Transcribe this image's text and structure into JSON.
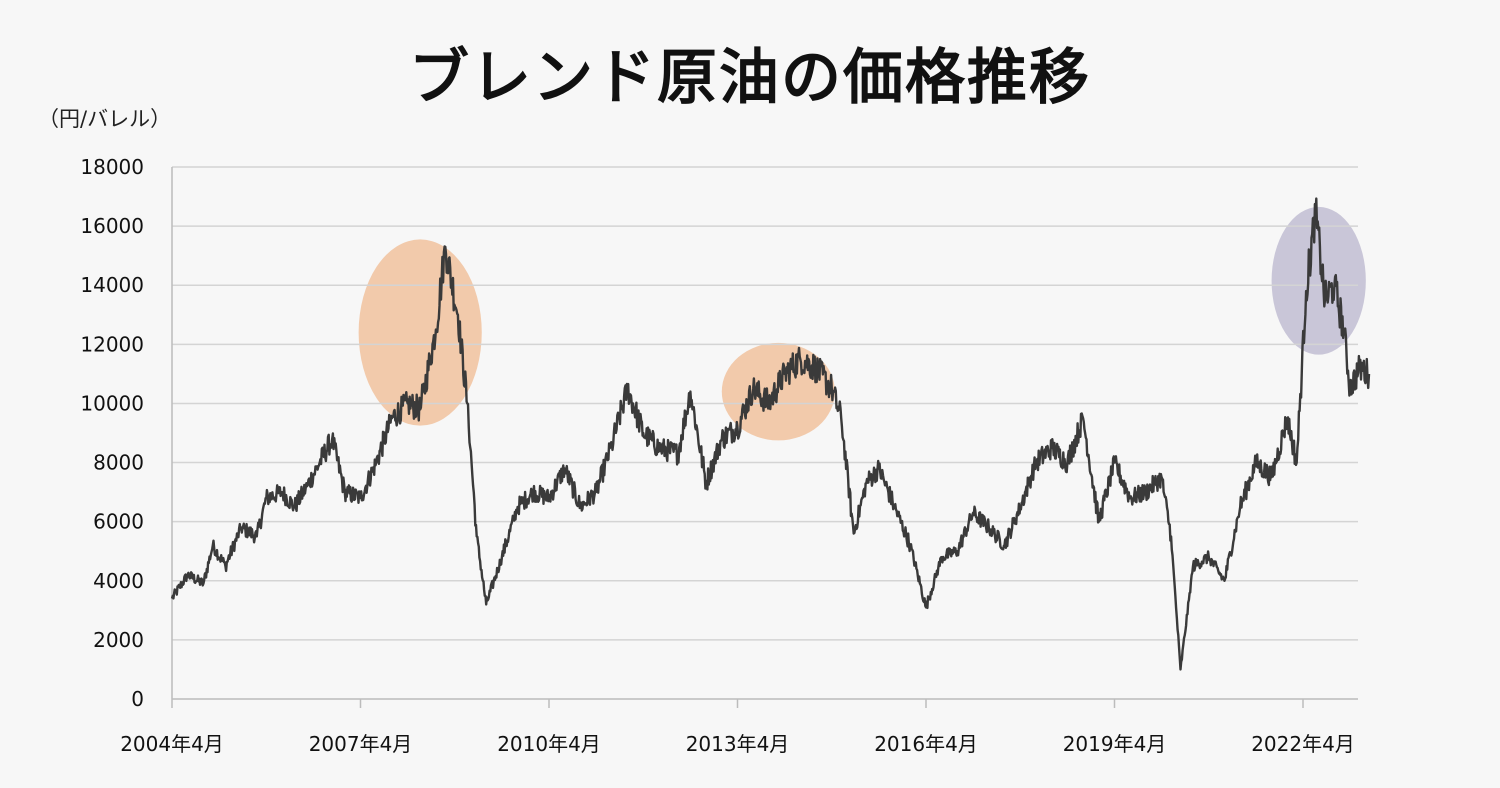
{
  "chart_data": {
    "type": "line",
    "title": "ブレンド原油の価格推移",
    "ylabel": "（円/バレル）",
    "xlabel": "",
    "ylim": [
      0,
      18000
    ],
    "yticks": [
      "0",
      "2000",
      "4000",
      "6000",
      "8000",
      "10000",
      "12000",
      "14000",
      "16000",
      "18000"
    ],
    "xticks": [
      "2004年4月",
      "2007年4月",
      "2010年4月",
      "2013年4月",
      "2016年4月",
      "2019年4月",
      "2022年4月"
    ],
    "x_range_years": [
      2004.25,
      2023.3
    ],
    "grid": "horizontal",
    "legend": "none",
    "line_color": "#3a3a3a",
    "series": [
      {
        "x": [
          2004.25,
          2004.5,
          2004.75,
          2004.9,
          2005.1,
          2005.35,
          2005.6,
          2005.75,
          2006.0,
          2006.2,
          2006.4,
          2006.6,
          2006.8,
          2007.0,
          2007.25,
          2007.5,
          2007.75,
          2008.0,
          2008.2,
          2008.45,
          2008.6,
          2008.8,
          2008.95,
          2009.1,
          2009.25,
          2009.5,
          2009.75,
          2010.0,
          2010.25,
          2010.5,
          2010.75,
          2011.0,
          2011.25,
          2011.5,
          2011.75,
          2012.0,
          2012.3,
          2012.5,
          2012.75,
          2013.0,
          2013.25,
          2013.5,
          2013.75,
          2014.0,
          2014.25,
          2014.5,
          2014.75,
          2014.9,
          2015.1,
          2015.3,
          2015.5,
          2015.75,
          2016.0,
          2016.25,
          2016.5,
          2016.75,
          2017.0,
          2017.25,
          2017.5,
          2017.75,
          2018.0,
          2018.25,
          2018.5,
          2018.75,
          2019.0,
          2019.25,
          2019.5,
          2019.75,
          2020.0,
          2020.15,
          2020.3,
          2020.5,
          2020.75,
          2021.0,
          2021.25,
          2021.5,
          2021.75,
          2022.0,
          2022.15,
          2022.3,
          2022.45,
          2022.6,
          2022.75,
          2022.9,
          2023.0,
          2023.15,
          2023.3
        ],
        "values": [
          3400,
          4200,
          3900,
          5200,
          4500,
          5800,
          5500,
          6800,
          7000,
          6500,
          7200,
          8000,
          8800,
          7000,
          6800,
          8000,
          9500,
          10000,
          9800,
          12500,
          15300,
          13000,
          10000,
          5500,
          3200,
          4800,
          6500,
          7000,
          6800,
          7800,
          6500,
          7000,
          8600,
          10500,
          9000,
          8500,
          8300,
          10400,
          7300,
          8800,
          9200,
          10500,
          10000,
          11000,
          11500,
          11200,
          10500,
          9500,
          5600,
          7300,
          7800,
          6500,
          5200,
          3100,
          4800,
          5000,
          6300,
          5800,
          5200,
          6500,
          8000,
          8500,
          8000,
          9500,
          6000,
          8000,
          6800,
          7000,
          7500,
          5500,
          1000,
          4500,
          4800,
          4000,
          6500,
          8000,
          7500,
          9500,
          8000,
          13800,
          16500,
          13500,
          14000,
          12500,
          10500,
          11200,
          11000
        ]
      }
    ],
    "highlights": [
      {
        "color": "#f0b88e",
        "cx_year": 2008.2,
        "cy_value": 12400,
        "rx_years": 0.98,
        "ry_value": 3150
      },
      {
        "color": "#f0b88e",
        "cx_year": 2013.9,
        "cy_value": 10400,
        "rx_years": 0.9,
        "ry_value": 1650
      },
      {
        "color": "#b7b3cc",
        "cx_year": 2022.5,
        "cy_value": 14150,
        "rx_years": 0.75,
        "ry_value": 2500
      }
    ]
  }
}
